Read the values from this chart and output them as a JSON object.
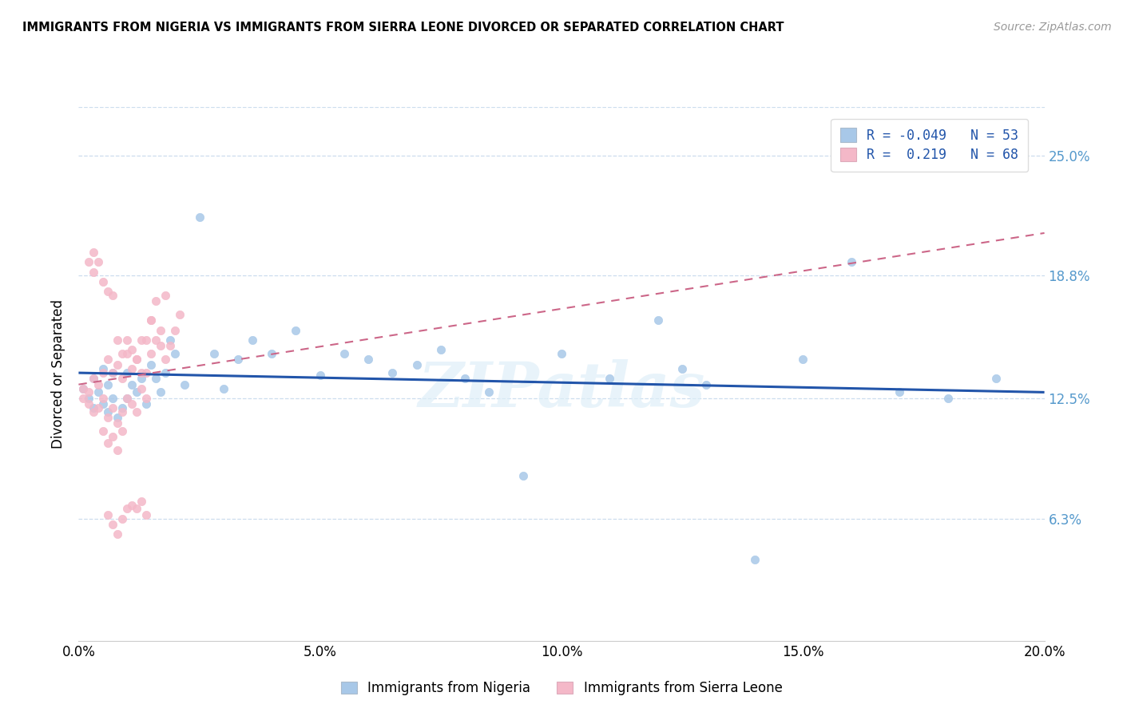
{
  "title": "IMMIGRANTS FROM NIGERIA VS IMMIGRANTS FROM SIERRA LEONE DIVORCED OR SEPARATED CORRELATION CHART",
  "source_text": "Source: ZipAtlas.com",
  "ylabel": "Divorced or Separated",
  "xlim": [
    0.0,
    0.2
  ],
  "ylim": [
    0.0,
    0.275
  ],
  "xtick_labels": [
    "0.0%",
    "5.0%",
    "10.0%",
    "15.0%",
    "20.0%"
  ],
  "xtick_vals": [
    0.0,
    0.05,
    0.1,
    0.15,
    0.2
  ],
  "ytick_labels": [
    "6.3%",
    "12.5%",
    "18.8%",
    "25.0%"
  ],
  "ytick_vals": [
    0.063,
    0.125,
    0.188,
    0.25
  ],
  "watermark": "ZIPatlas",
  "legend_nigeria_label": "Immigrants from Nigeria",
  "legend_sl_label": "Immigrants from Sierra Leone",
  "R_nigeria": -0.049,
  "N_nigeria": 53,
  "R_sl": 0.219,
  "N_sl": 68,
  "nigeria_color": "#a8c8e8",
  "sl_color": "#f4b8c8",
  "nigeria_line_color": "#2255aa",
  "sl_line_color": "#cc6688",
  "grid_color": "#ccddee",
  "tick_color": "#5599cc",
  "nigeria_scatter_x": [
    0.001,
    0.002,
    0.003,
    0.003,
    0.004,
    0.005,
    0.005,
    0.006,
    0.006,
    0.007,
    0.007,
    0.008,
    0.009,
    0.01,
    0.01,
    0.011,
    0.012,
    0.013,
    0.014,
    0.015,
    0.016,
    0.017,
    0.018,
    0.019,
    0.02,
    0.022,
    0.025,
    0.028,
    0.03,
    0.033,
    0.036,
    0.04,
    0.045,
    0.05,
    0.055,
    0.06,
    0.065,
    0.07,
    0.075,
    0.08,
    0.085,
    0.092,
    0.1,
    0.11,
    0.12,
    0.125,
    0.13,
    0.14,
    0.15,
    0.16,
    0.17,
    0.18,
    0.19
  ],
  "nigeria_scatter_y": [
    0.13,
    0.125,
    0.135,
    0.12,
    0.128,
    0.122,
    0.14,
    0.118,
    0.132,
    0.125,
    0.138,
    0.115,
    0.12,
    0.125,
    0.138,
    0.132,
    0.128,
    0.135,
    0.122,
    0.142,
    0.135,
    0.128,
    0.138,
    0.155,
    0.148,
    0.132,
    0.218,
    0.148,
    0.13,
    0.145,
    0.155,
    0.148,
    0.16,
    0.137,
    0.148,
    0.145,
    0.138,
    0.142,
    0.15,
    0.135,
    0.128,
    0.085,
    0.148,
    0.135,
    0.165,
    0.14,
    0.132,
    0.042,
    0.145,
    0.195,
    0.128,
    0.125,
    0.135
  ],
  "sl_scatter_x": [
    0.001,
    0.001,
    0.002,
    0.002,
    0.003,
    0.003,
    0.003,
    0.004,
    0.004,
    0.005,
    0.005,
    0.006,
    0.006,
    0.007,
    0.007,
    0.008,
    0.008,
    0.009,
    0.009,
    0.01,
    0.01,
    0.011,
    0.011,
    0.012,
    0.012,
    0.013,
    0.013,
    0.014,
    0.014,
    0.015,
    0.015,
    0.016,
    0.016,
    0.017,
    0.017,
    0.018,
    0.018,
    0.019,
    0.02,
    0.021,
    0.002,
    0.003,
    0.004,
    0.005,
    0.006,
    0.007,
    0.008,
    0.009,
    0.01,
    0.011,
    0.012,
    0.013,
    0.014,
    0.015,
    0.006,
    0.007,
    0.008,
    0.009,
    0.01,
    0.011,
    0.012,
    0.013,
    0.014,
    0.005,
    0.006,
    0.007,
    0.008,
    0.009
  ],
  "sl_scatter_y": [
    0.125,
    0.13,
    0.122,
    0.128,
    0.118,
    0.135,
    0.2,
    0.12,
    0.132,
    0.125,
    0.138,
    0.115,
    0.145,
    0.12,
    0.138,
    0.112,
    0.142,
    0.118,
    0.135,
    0.125,
    0.148,
    0.122,
    0.14,
    0.118,
    0.145,
    0.13,
    0.155,
    0.125,
    0.138,
    0.148,
    0.165,
    0.155,
    0.175,
    0.152,
    0.16,
    0.145,
    0.178,
    0.152,
    0.16,
    0.168,
    0.195,
    0.19,
    0.195,
    0.185,
    0.18,
    0.178,
    0.155,
    0.148,
    0.155,
    0.15,
    0.145,
    0.138,
    0.155,
    0.165,
    0.065,
    0.06,
    0.055,
    0.063,
    0.068,
    0.07,
    0.068,
    0.072,
    0.065,
    0.108,
    0.102,
    0.105,
    0.098,
    0.108
  ],
  "nigeria_trend_x": [
    0.0,
    0.2
  ],
  "nigeria_trend_y": [
    0.138,
    0.128
  ],
  "sl_trend_x": [
    0.0,
    0.2
  ],
  "sl_trend_y": [
    0.132,
    0.21
  ]
}
